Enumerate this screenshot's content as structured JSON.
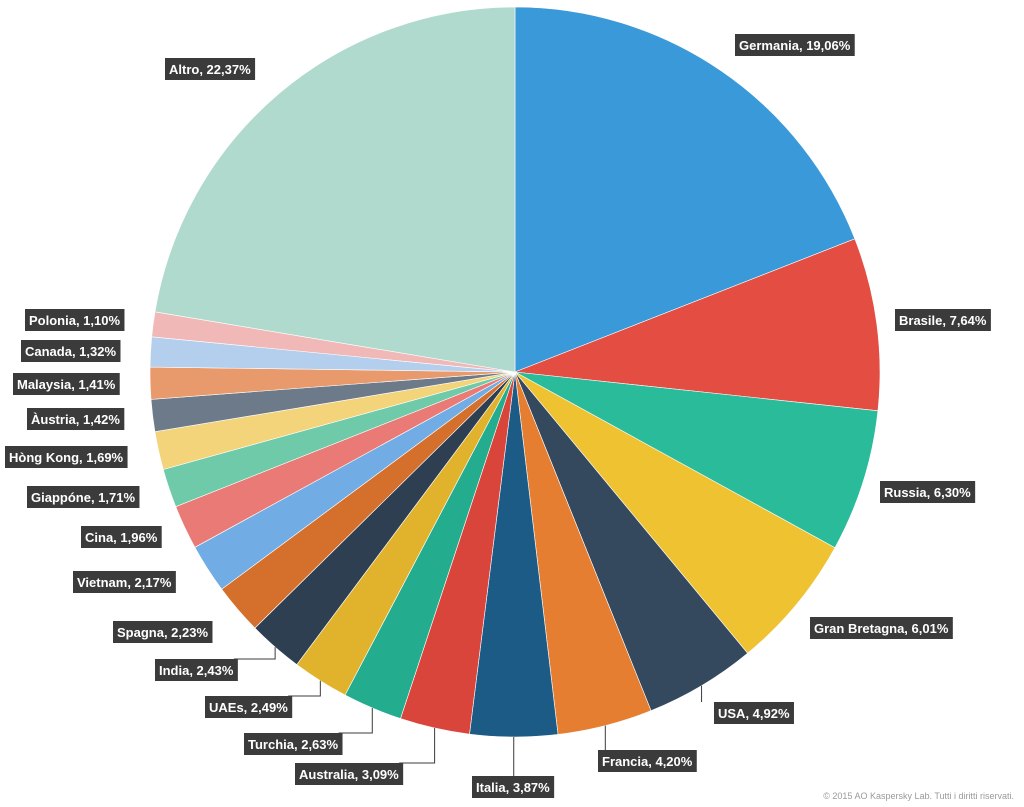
{
  "chart_data": {
    "type": "pie",
    "start_angle": "top",
    "direction": "clockwise",
    "slices": [
      {
        "label": "Germania, 19,06%",
        "value": 19.06,
        "color": "#3a99d8"
      },
      {
        "label": "Brasile, 7,64%",
        "value": 7.64,
        "color": "#e34d42"
      },
      {
        "label": "Russia, 6,30%",
        "value": 6.3,
        "color": "#2abb9b"
      },
      {
        "label": "Gran Bretagna, 6,01%",
        "value": 6.01,
        "color": "#efc232"
      },
      {
        "label": "USA, 4,92%",
        "value": 4.92,
        "color": "#34495e"
      },
      {
        "label": "Francia, 4,20%",
        "value": 4.2,
        "color": "#e57e31"
      },
      {
        "label": "Italia, 3,87%",
        "value": 3.87,
        "color": "#1d5b87"
      },
      {
        "label": "Australia, 3,09%",
        "value": 3.09,
        "color": "#d9453a"
      },
      {
        "label": "Turchia, 2,63%",
        "value": 2.63,
        "color": "#24ac8f"
      },
      {
        "label": "UAEs, 2,49%",
        "value": 2.49,
        "color": "#e1b32c"
      },
      {
        "label": "India, 2,43%",
        "value": 2.43,
        "color": "#2f3f52"
      },
      {
        "label": "Spagna, 2,23%",
        "value": 2.23,
        "color": "#d4702b"
      },
      {
        "label": "Vietnam, 2,17%",
        "value": 2.17,
        "color": "#72ace4"
      },
      {
        "label": "Cina, 1,96%",
        "value": 1.96,
        "color": "#ea7a75"
      },
      {
        "label": "Giappóne, 1,71%",
        "value": 1.71,
        "color": "#6ecaa8"
      },
      {
        "label": "Hòng Kong, 1,69%",
        "value": 1.69,
        "color": "#f3d47a"
      },
      {
        "label": "Àustria, 1,42%",
        "value": 1.42,
        "color": "#6c7a89"
      },
      {
        "label": "Malaysia, 1,41%",
        "value": 1.41,
        "color": "#e89a6d"
      },
      {
        "label": "Canada, 1,32%",
        "value": 1.32,
        "color": "#b4cfee"
      },
      {
        "label": "Polonia, 1,10%",
        "value": 1.1,
        "color": "#f1b8b8"
      },
      {
        "label": "Altro, 22,37%",
        "value": 22.37,
        "color": "#b0dacd"
      }
    ]
  },
  "footer": {
    "copyright": "© 2015 AO Kaspersky Lab. Tutti i diritti riservati."
  }
}
